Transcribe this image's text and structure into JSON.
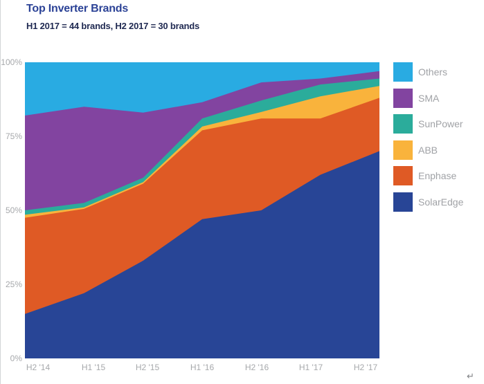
{
  "page": {
    "title": "Top Inverter Brands",
    "subtitle": "H1 2017 = 44 brands, H2 2017 = 30 brands",
    "return_mark_glyph": "↵"
  },
  "colors": {
    "title_text": "#2b4296",
    "subtitle_text": "#202a52",
    "axis_tick_text": "#a6a8ab",
    "legend_text": "#a0a2a6",
    "page_edge_line": "#d2d4d6"
  },
  "chart_data": {
    "type": "area",
    "stacked": true,
    "title": "Top Inverter Brands",
    "subtitle": "H1 2017 = 44 brands, H2 2017 = 30 brands",
    "unit": "percent share",
    "grid": false,
    "legend_position": "right",
    "ylim": [
      0,
      100
    ],
    "y_tick_values": [
      0,
      25,
      50,
      75,
      100
    ],
    "y_tick_suffix": "%",
    "categories": [
      "H2 '14",
      "H1 '15",
      "H2 '15",
      "H1 '16",
      "H2 '16",
      "H1 '17",
      "H2 '17"
    ],
    "series_stack_order": "bottom_to_top",
    "series": [
      {
        "name": "SolarEdge",
        "color": "#284596",
        "values": [
          15,
          22,
          33,
          47,
          50,
          62,
          70
        ]
      },
      {
        "name": "Enphase",
        "color": "#df5a25",
        "values": [
          32.5,
          28.5,
          26,
          30,
          31,
          19,
          18
        ]
      },
      {
        "name": "ABB",
        "color": "#f9b33c",
        "values": [
          1,
          0.5,
          0.5,
          1.3,
          2.2,
          7.5,
          4
        ]
      },
      {
        "name": "SunPower",
        "color": "#2bac9b",
        "values": [
          1.5,
          1.5,
          1.5,
          2.7,
          3.9,
          4,
          2.5
        ]
      },
      {
        "name": "SMA",
        "color": "#8244a0",
        "values": [
          32,
          32.5,
          22,
          5.5,
          6.1,
          2,
          2.5
        ]
      },
      {
        "name": "Others",
        "color": "#29abe2",
        "values": [
          18,
          15,
          17,
          13.5,
          6.8,
          5.5,
          3
        ]
      }
    ]
  }
}
